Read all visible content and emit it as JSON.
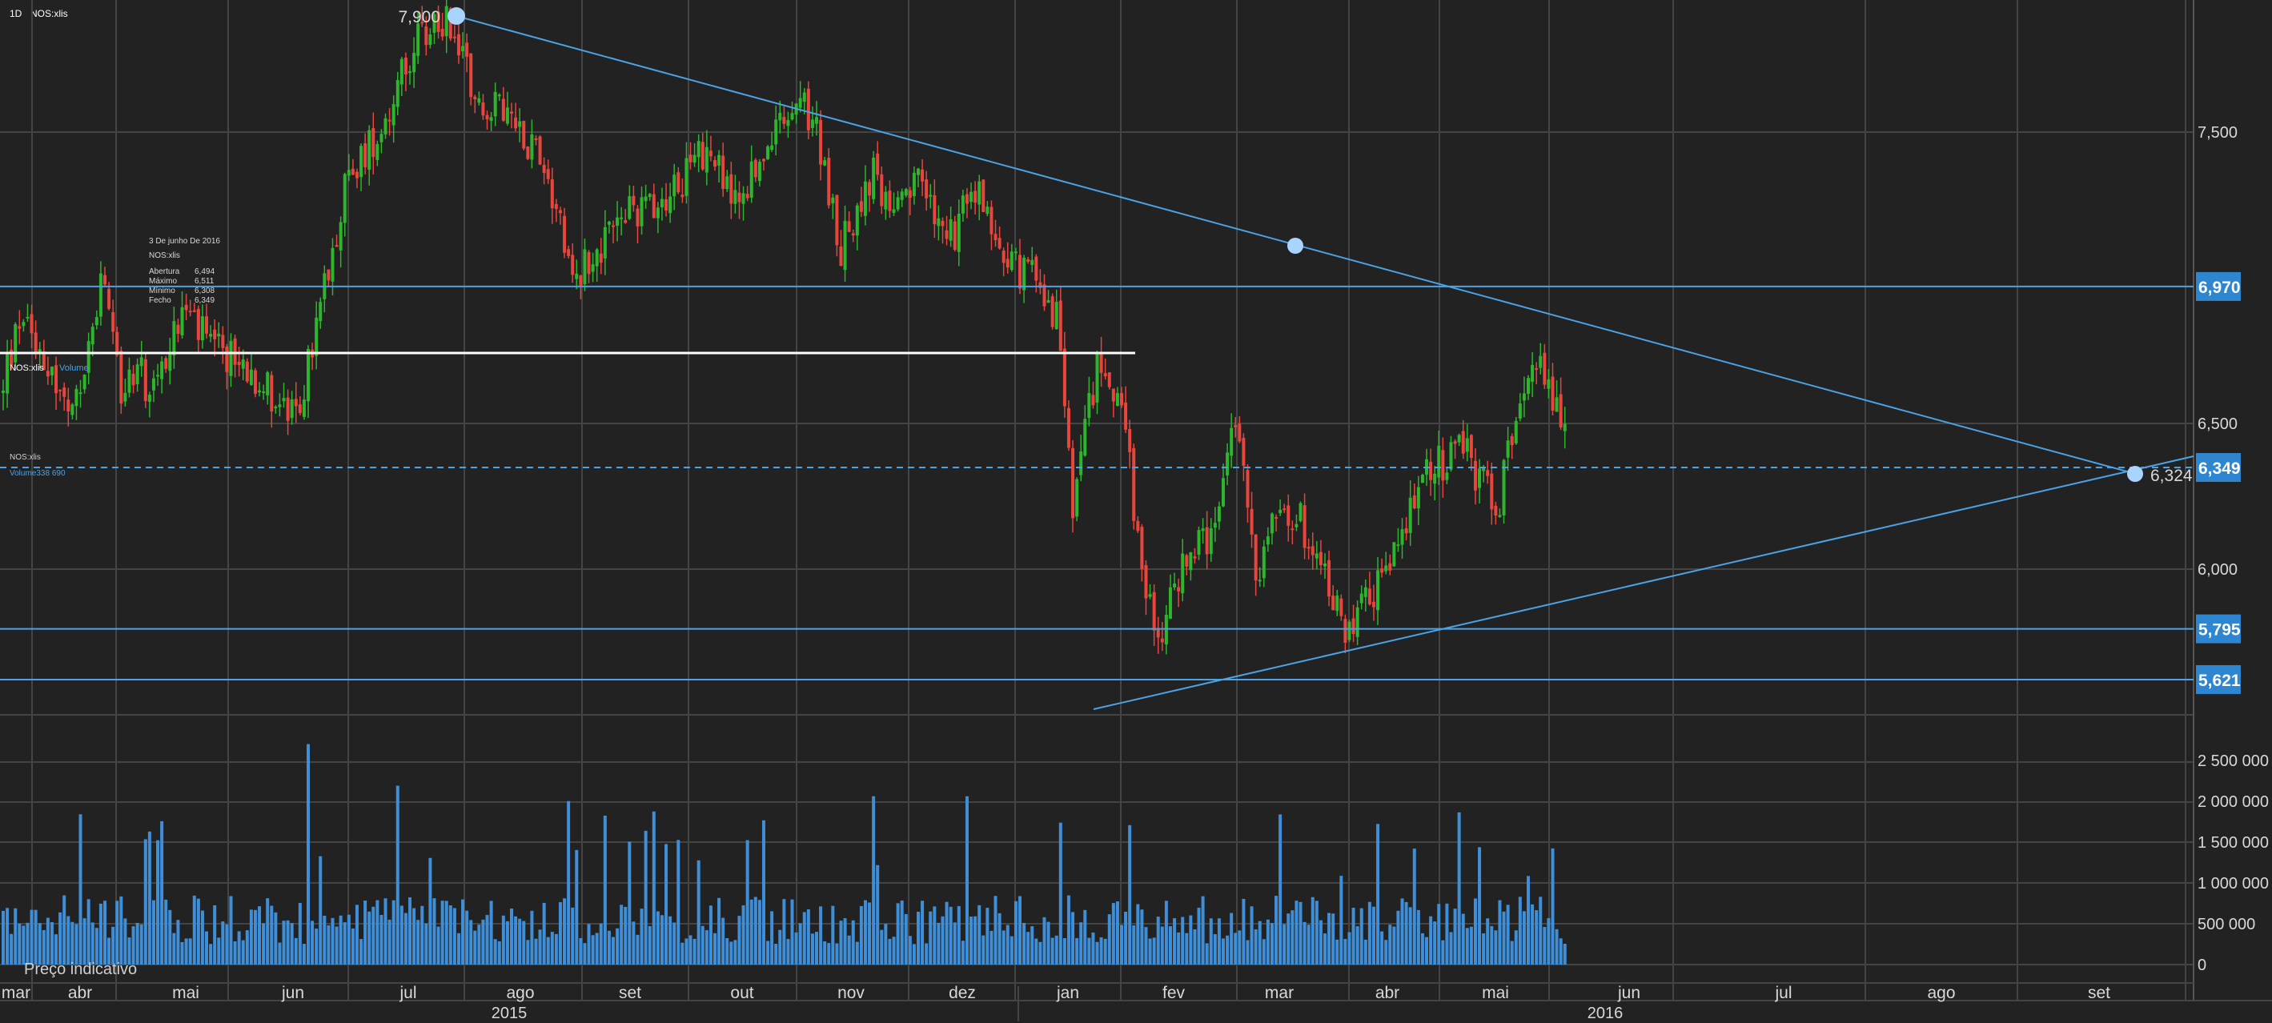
{
  "header": {
    "timeframe": "1D",
    "symbol": "NOS:xlis"
  },
  "tooltip": {
    "date": "3 De junho De 2016",
    "symbol": "NOS:xlis",
    "rows": [
      {
        "label": "Abertura",
        "value": "6,494"
      },
      {
        "label": "Máximo",
        "value": "6,511"
      },
      {
        "label": "Mínimo",
        "value": "6,308"
      },
      {
        "label": "Fecho",
        "value": "6,349"
      }
    ]
  },
  "legend": {
    "price_symbol": "NOS:xlis",
    "volume_label": "Volume",
    "lower_symbol": "NOS:xlis",
    "lower_volume": "Volume338 690"
  },
  "footer_label": "Preço indicativo",
  "colors": {
    "background": "#222222",
    "grid": "#444444",
    "up": "#2db52d",
    "down": "#e8453c",
    "volume": "#3f8fd8",
    "trendline": "#4ba3e6",
    "marker": "#a9d4ff",
    "badge": "#2e86d1"
  },
  "chart_data": {
    "type": "candlestick",
    "y_ticks": [
      "7,500",
      "6,500",
      "6,000"
    ],
    "y_tick_values": [
      7.5,
      6.5,
      6.0
    ],
    "volume_ticks": [
      "2 500 000",
      "2 000 000",
      "1 500 000",
      "1 000 000",
      "500 000",
      "0"
    ],
    "volume_tick_values": [
      2500000,
      2000000,
      1500000,
      1000000,
      500000,
      0
    ],
    "months": [
      "mar",
      "abr",
      "mai",
      "jun",
      "jul",
      "ago",
      "set",
      "out",
      "nov",
      "dez",
      "jan",
      "fev",
      "mar",
      "abr",
      "mai",
      "jun",
      "jul",
      "ago",
      "set"
    ],
    "years": [
      "2015",
      "2016"
    ],
    "price_levels": [
      {
        "label": "6,970",
        "value": 6.97
      },
      {
        "label": "6,349",
        "value": 6.349
      },
      {
        "label": "5,795",
        "value": 5.795
      },
      {
        "label": "5,621",
        "value": 5.621
      }
    ],
    "annotations": [
      {
        "label": "7,900",
        "value": 7.9
      },
      {
        "label": "6,324",
        "value": 6.324
      }
    ],
    "last_close": 6.349
  }
}
